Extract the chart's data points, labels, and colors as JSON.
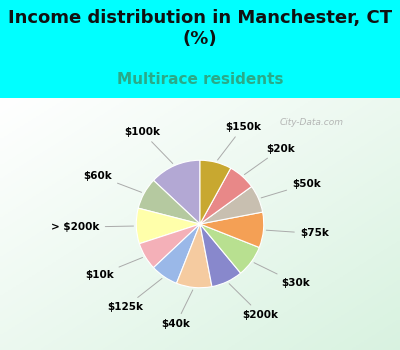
{
  "title": "Income distribution in Manchester, CT\n(%)",
  "subtitle": "Multirace residents",
  "background_color": "#00FFFF",
  "watermark": "City-Data.com",
  "labels": [
    "$100k",
    "$60k",
    "> $200k",
    "$10k",
    "$125k",
    "$40k",
    "$200k",
    "$30k",
    "$75k",
    "$50k",
    "$20k",
    "$150k"
  ],
  "values": [
    13,
    8,
    9,
    7,
    7,
    9,
    8,
    8,
    9,
    7,
    7,
    8
  ],
  "colors": [
    "#b3a8d4",
    "#b5c9a0",
    "#ffffaa",
    "#f4b0b8",
    "#9ab8e8",
    "#f5cba0",
    "#8888cc",
    "#b8e090",
    "#f4a055",
    "#c8bfb0",
    "#e88888",
    "#c8a830"
  ],
  "startangle": 90,
  "title_fontsize": 13,
  "subtitle_fontsize": 11,
  "label_fontsize": 7.5
}
